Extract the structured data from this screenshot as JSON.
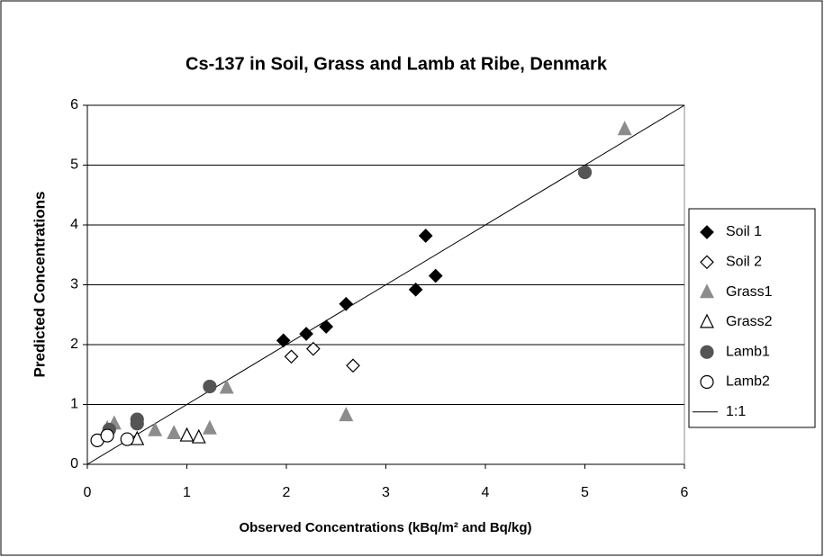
{
  "chart_data": {
    "type": "scatter",
    "title": "Cs-137 in Soil, Grass and Lamb at Ribe, Denmark",
    "x_label": "Observed Concentrations (kBq/m² and Bq/kg)",
    "y_label": "Predicted Concentrations",
    "xlim": [
      0,
      6
    ],
    "ylim": [
      0,
      6
    ],
    "xticks": [
      0,
      1,
      2,
      3,
      4,
      5,
      6
    ],
    "yticks": [
      0,
      1,
      2,
      3,
      4,
      5,
      6
    ],
    "grid": true,
    "legend": "right",
    "series": [
      {
        "name": "Soil 1",
        "marker": "diamond",
        "color": "#000000",
        "filled": true,
        "x": [
          1.97,
          2.2,
          2.4,
          2.6,
          3.3,
          3.4,
          3.5
        ],
        "values": [
          2.07,
          2.18,
          2.3,
          2.68,
          2.92,
          3.82,
          3.15
        ]
      },
      {
        "name": "Soil 2",
        "marker": "diamond",
        "color": "#000000",
        "filled": false,
        "x": [
          2.05,
          2.27,
          2.67
        ],
        "values": [
          1.8,
          1.93,
          1.65
        ]
      },
      {
        "name": "Grass1",
        "marker": "triangle",
        "color": "#8c8c8c",
        "filled": true,
        "x": [
          0.2,
          0.27,
          0.68,
          0.87,
          1.23,
          1.4,
          2.6,
          5.4
        ],
        "values": [
          0.6,
          0.68,
          0.57,
          0.52,
          0.6,
          1.28,
          0.82,
          5.6
        ]
      },
      {
        "name": "Grass2",
        "marker": "triangle",
        "color": "#000000",
        "filled": false,
        "x": [
          0.5,
          1.0,
          1.12
        ],
        "values": [
          0.42,
          0.48,
          0.45
        ]
      },
      {
        "name": "Lamb1",
        "marker": "circle",
        "color": "#555555",
        "filled": true,
        "x": [
          0.22,
          0.5,
          0.5,
          1.23,
          5.0
        ],
        "values": [
          0.58,
          0.75,
          0.68,
          1.3,
          4.88
        ]
      },
      {
        "name": "Lamb2",
        "marker": "circle",
        "color": "#000000",
        "filled": false,
        "x": [
          0.1,
          0.2,
          0.4
        ],
        "values": [
          0.4,
          0.48,
          0.42
        ]
      },
      {
        "name": "1:1",
        "marker": "line",
        "color": "#000000",
        "filled": false,
        "x": [
          0,
          6
        ],
        "values": [
          0,
          6
        ]
      }
    ]
  }
}
